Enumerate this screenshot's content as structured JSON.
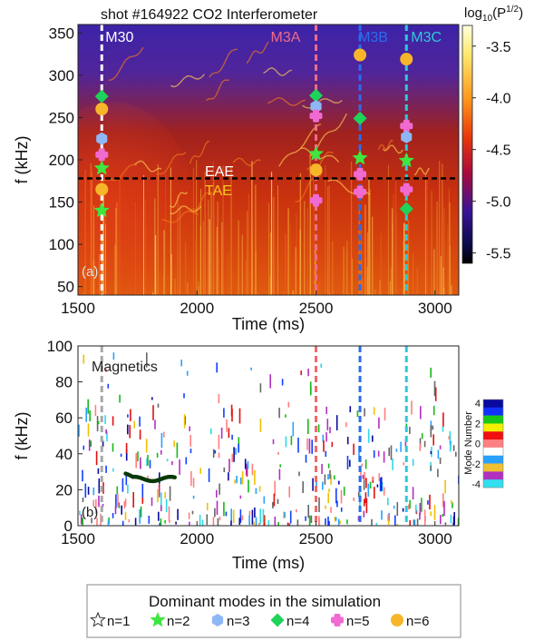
{
  "chart_data": [
    {
      "type": "heatmap",
      "title": "shot #164922   CO2 Interferometer",
      "panel_label": "(a)",
      "xlabel": "Time (ms)",
      "ylabel": "f (kHz)",
      "xlim": [
        1500,
        3100
      ],
      "ylim": [
        40,
        360
      ],
      "xticks": [
        1500,
        2000,
        2500,
        3000
      ],
      "yticks": [
        50,
        100,
        150,
        200,
        250,
        300,
        350
      ],
      "colorbar": {
        "label": "log10(P^1/2)",
        "label_main": "log",
        "label_sub": "10",
        "label_tail": "(P",
        "label_sup": "1/2",
        "label_end": ")",
        "range": [
          -5.6,
          -3.3
        ],
        "ticks": [
          -3.5,
          -4.0,
          -4.5,
          -5.0,
          -5.5
        ],
        "tick_labels": [
          "-3.5",
          "-4.0",
          "-4.5",
          "-5.0",
          "-5.5"
        ]
      },
      "gap_line": {
        "f": 178,
        "label_upper": "EAE",
        "label_lower": "TAE",
        "color": "#000000"
      },
      "time_markers": [
        {
          "name": "M30",
          "t": 1600,
          "color": "#ffffff"
        },
        {
          "name": "M3A",
          "t": 2500,
          "color": "#f06b8a"
        },
        {
          "name": "M3B",
          "t": 2685,
          "color": "#2a6cf0"
        },
        {
          "name": "M3C",
          "t": 2880,
          "color": "#30c8d8"
        }
      ],
      "modes": [
        {
          "t": 1600,
          "n": 4,
          "f": 275
        },
        {
          "t": 1600,
          "n": 6,
          "f": 260
        },
        {
          "t": 1600,
          "n": 3,
          "f": 225
        },
        {
          "t": 1600,
          "n": 5,
          "f": 206
        },
        {
          "t": 1600,
          "n": 2,
          "f": 190
        },
        {
          "t": 1600,
          "n": 6,
          "f": 165
        },
        {
          "t": 1600,
          "n": 2,
          "f": 140
        },
        {
          "t": 2500,
          "n": 4,
          "f": 276
        },
        {
          "t": 2500,
          "n": 3,
          "f": 263
        },
        {
          "t": 2500,
          "n": 5,
          "f": 252
        },
        {
          "t": 2500,
          "n": 2,
          "f": 207
        },
        {
          "t": 2500,
          "n": 6,
          "f": 188
        },
        {
          "t": 2500,
          "n": 5,
          "f": 152
        },
        {
          "t": 2685,
          "n": 6,
          "f": 324
        },
        {
          "t": 2685,
          "n": 4,
          "f": 249
        },
        {
          "t": 2685,
          "n": 2,
          "f": 202
        },
        {
          "t": 2685,
          "n": 5,
          "f": 183
        },
        {
          "t": 2685,
          "n": 5,
          "f": 162
        },
        {
          "t": 2880,
          "n": 6,
          "f": 319
        },
        {
          "t": 2880,
          "n": 5,
          "f": 240
        },
        {
          "t": 2880,
          "n": 3,
          "f": 227
        },
        {
          "t": 2880,
          "n": 2,
          "f": 199
        },
        {
          "t": 2880,
          "n": 5,
          "f": 165
        },
        {
          "t": 2880,
          "n": 4,
          "f": 142
        }
      ]
    },
    {
      "type": "scatter",
      "panel_label": "(b)",
      "annotation": "Magnetics",
      "xlabel": "Time (ms)",
      "ylabel": "f (kHz)",
      "xlim": [
        1500,
        3100
      ],
      "ylim": [
        0,
        100
      ],
      "xticks": [
        1500,
        2000,
        2500,
        3000
      ],
      "yticks": [
        0,
        20,
        40,
        60,
        80,
        100
      ],
      "colorbar": {
        "label": "Mode Number",
        "ticks": [
          4,
          2,
          0,
          -2,
          -4
        ],
        "tick_labels": [
          "4",
          "2",
          "0",
          "-2",
          "-4"
        ],
        "colors": [
          "#0a0aa0",
          "#1030ff",
          "#18c818",
          "#f0f000",
          "#f01010",
          "#ff8080",
          "#ffffff",
          "#28a0ff",
          "#f0c030",
          "#b030c0",
          "#30e0f0"
        ]
      },
      "time_markers": [
        {
          "t": 1600,
          "color": "#a8a8a8"
        },
        {
          "t": 2500,
          "color": "#f06b6b"
        },
        {
          "t": 2685,
          "color": "#2a6cf0"
        },
        {
          "t": 2880,
          "color": "#30c8d8"
        }
      ]
    }
  ],
  "legend": {
    "title": "Dominant modes in the simulation",
    "items": [
      {
        "n": 1,
        "label": "n=1",
        "marker": "star-open",
        "color": "#ffffff"
      },
      {
        "n": 2,
        "label": "n=2",
        "marker": "star",
        "color": "#3fe63f"
      },
      {
        "n": 3,
        "label": "n=3",
        "marker": "hexagon",
        "color": "#8eb8f5"
      },
      {
        "n": 4,
        "label": "n=4",
        "marker": "diamond",
        "color": "#1ed35a"
      },
      {
        "n": 5,
        "label": "n=5",
        "marker": "cross",
        "color": "#f06ad2"
      },
      {
        "n": 6,
        "label": "n=6",
        "marker": "circle",
        "color": "#f7b52a"
      }
    ]
  }
}
